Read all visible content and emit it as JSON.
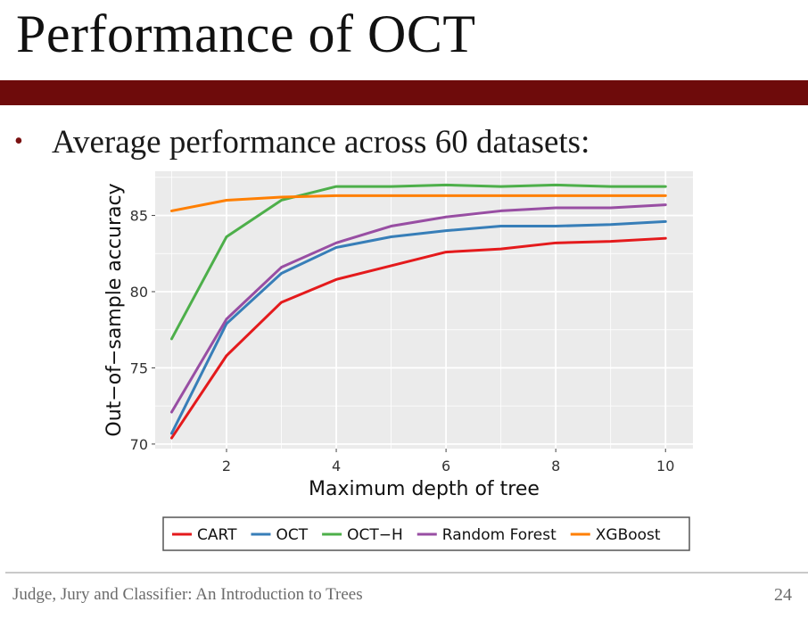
{
  "slide": {
    "title": "Performance of OCT",
    "bullet": "Average performance across 60 datasets:",
    "footer": "Judge, Jury and Classifier: An Introduction to Trees",
    "page_number": "24"
  },
  "colors": {
    "accent_bar": "#6e0b0b",
    "panel": "#ebebeb",
    "grid": "#ffffff"
  },
  "chart_data": {
    "type": "line",
    "title": "",
    "xlabel": "Maximum depth of tree",
    "ylabel": "Out−of−sample accuracy",
    "xlim": [
      0.7,
      10.5
    ],
    "ylim": [
      69.7,
      87.9
    ],
    "xticks": [
      2,
      4,
      6,
      8,
      10
    ],
    "yticks": [
      70,
      75,
      80,
      85
    ],
    "x": [
      1,
      2,
      3,
      4,
      5,
      6,
      7,
      8,
      9,
      10
    ],
    "grid": true,
    "legend_position": "bottom",
    "series": [
      {
        "name": "CART",
        "color": "#e41a1c",
        "values": [
          70.4,
          75.8,
          79.3,
          80.8,
          81.7,
          82.6,
          82.8,
          83.2,
          83.3,
          83.5
        ]
      },
      {
        "name": "OCT",
        "color": "#377eb8",
        "values": [
          70.7,
          77.9,
          81.2,
          82.9,
          83.6,
          84.0,
          84.3,
          84.3,
          84.4,
          84.6
        ]
      },
      {
        "name": "OCT−H",
        "color": "#4daf4a",
        "values": [
          76.9,
          83.6,
          86.0,
          86.9,
          86.9,
          87.0,
          86.9,
          87.0,
          86.9,
          86.9
        ]
      },
      {
        "name": "Random Forest",
        "color": "#984ea3",
        "values": [
          72.1,
          78.2,
          81.6,
          83.2,
          84.3,
          84.9,
          85.3,
          85.5,
          85.5,
          85.7
        ]
      },
      {
        "name": "XGBoost",
        "color": "#ff7f00",
        "values": [
          85.3,
          86.0,
          86.2,
          86.3,
          86.3,
          86.3,
          86.3,
          86.3,
          86.3,
          86.3
        ]
      }
    ]
  }
}
